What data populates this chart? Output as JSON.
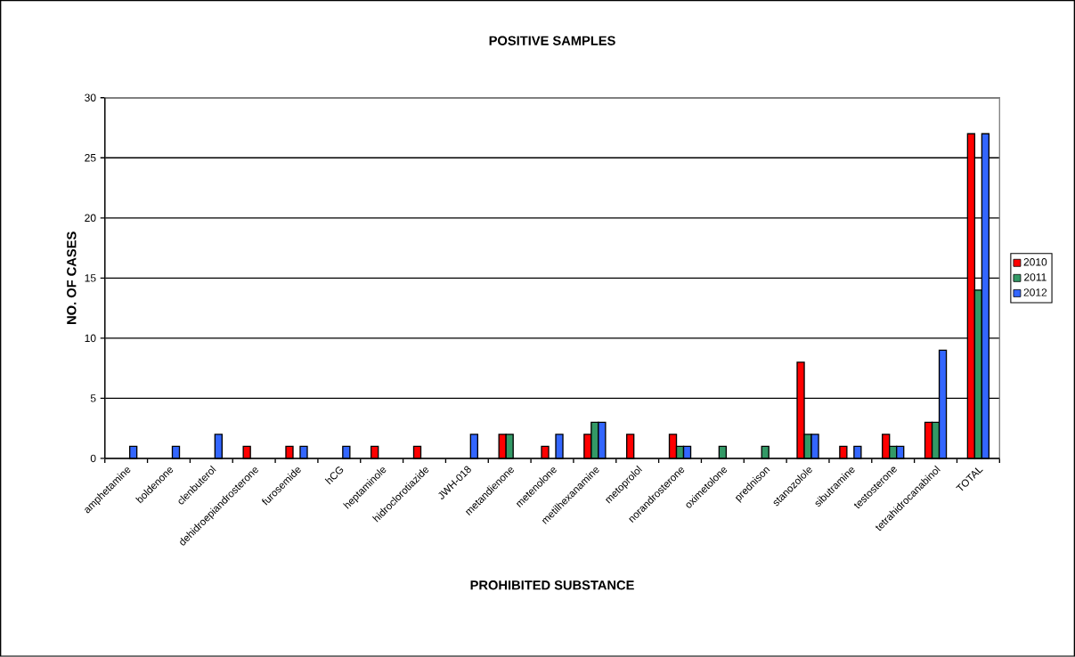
{
  "chart_data": {
    "type": "bar",
    "title": "POSITIVE SAMPLES",
    "xlabel": "PROHIBITED SUBSTANCE",
    "ylabel": "NO. OF CASES",
    "categories": [
      "amphetamine",
      "boldenone",
      "clenbuterol",
      "dehidroepiandrosterone",
      "furosemide",
      "hCG",
      "heptaminole",
      "hidroclorotiazide",
      "JWH-018",
      "metandienone",
      "metenolone",
      "metilhexanamine",
      "metoprolol",
      "norandrosterone",
      "oximetolone",
      "prednison",
      "stanozolole",
      "sibutramine",
      "testosterone",
      "tetrahidrocanabinol",
      "TOTAL"
    ],
    "series": [
      {
        "name": "2010",
        "color": "#ff0000",
        "values": [
          null,
          null,
          null,
          1,
          1,
          null,
          1,
          1,
          null,
          2,
          1,
          2,
          2,
          2,
          null,
          null,
          8,
          1,
          2,
          3,
          27
        ]
      },
      {
        "name": "2011",
        "color": "#339966",
        "values": [
          null,
          null,
          null,
          null,
          null,
          null,
          null,
          null,
          null,
          2,
          null,
          3,
          null,
          1,
          1,
          1,
          2,
          null,
          1,
          3,
          14
        ]
      },
      {
        "name": "2012",
        "color": "#3366ff",
        "values": [
          1,
          1,
          2,
          null,
          1,
          1,
          null,
          null,
          2,
          null,
          2,
          3,
          null,
          1,
          null,
          null,
          2,
          1,
          1,
          9,
          27
        ]
      }
    ],
    "ylim": [
      0,
      30
    ],
    "yticks": [
      0,
      5,
      10,
      15,
      20,
      25,
      30
    ],
    "grid": "y",
    "legend": "right"
  }
}
